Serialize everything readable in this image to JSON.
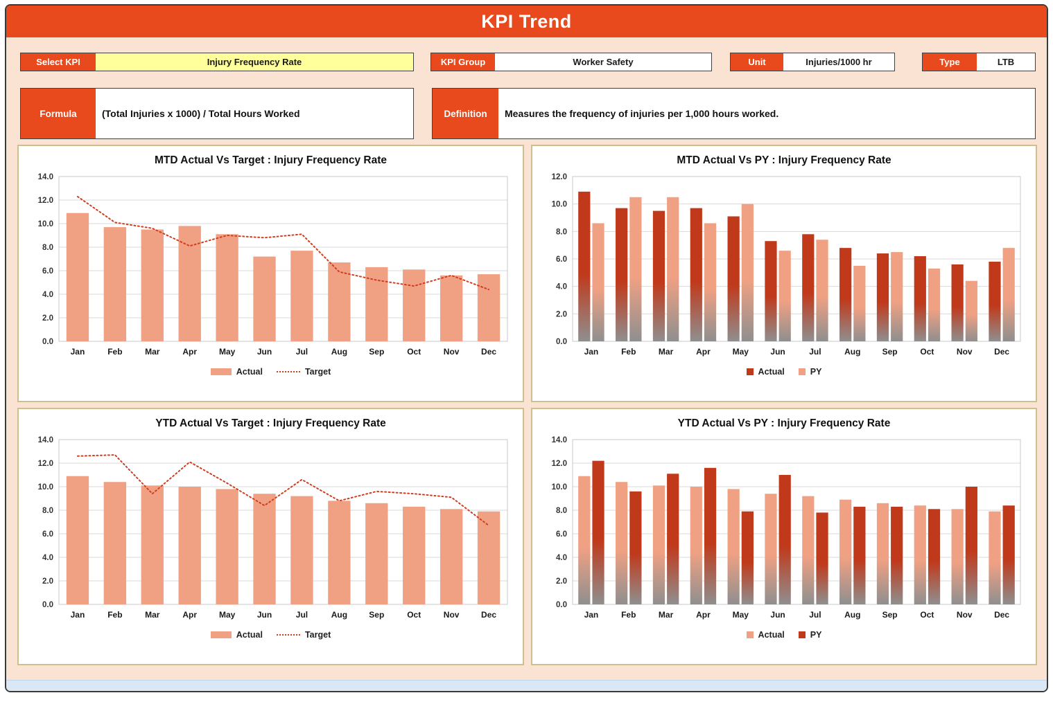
{
  "header": {
    "title": "KPI Trend"
  },
  "controls": {
    "select_kpi_label": "Select KPI",
    "select_kpi_value": "Injury Frequency Rate",
    "kpi_group_label": "KPI Group",
    "kpi_group_value": "Worker Safety",
    "unit_label": "Unit",
    "unit_value": "Injuries/1000 hr",
    "type_label": "Type",
    "type_value": "LTB",
    "formula_label": "Formula",
    "formula_value": "(Total Injuries x 1000) / Total Hours Worked",
    "definition_label": "Definition",
    "definition_value": "Measures the frequency of injuries per 1,000 hours worked."
  },
  "colors": {
    "accent": "#E8491D",
    "bar_salmon": "#F1A183",
    "bar_dark_red": "#C0391B",
    "target_line": "#CF3D1E",
    "gradient_bottom_gray": "#8F8F8F",
    "highlight_yellow": "#FFFF9C",
    "page_background": "#FBE3D4",
    "panel_border": "#CCC08E",
    "bottom_strip_blue": "#DAE8F5"
  },
  "chart_data": [
    {
      "id": "mtd-actual-vs-target",
      "type": "bar+line",
      "title": "MTD Actual Vs Target : Injury Frequency Rate",
      "categories": [
        "Jan",
        "Feb",
        "Mar",
        "Apr",
        "May",
        "Jun",
        "Jul",
        "Aug",
        "Sep",
        "Oct",
        "Nov",
        "Dec"
      ],
      "ylim": [
        0,
        14
      ],
      "ystep": 2,
      "grid": true,
      "legend_position": "bottom",
      "legend_swatch": "rect",
      "series": [
        {
          "name": "Actual",
          "type": "bar",
          "color": "#F1A183",
          "gradient": false,
          "values": [
            10.9,
            9.7,
            9.5,
            9.8,
            9.1,
            7.2,
            7.7,
            6.7,
            6.3,
            6.1,
            5.6,
            5.7
          ]
        },
        {
          "name": "Target",
          "type": "line",
          "color": "#CF3D1E",
          "line_style": "dotted",
          "values": [
            12.3,
            10.1,
            9.6,
            8.1,
            9.0,
            8.8,
            9.1,
            5.9,
            5.2,
            4.7,
            5.6,
            4.4
          ]
        }
      ]
    },
    {
      "id": "mtd-actual-vs-py",
      "type": "bar",
      "title": "MTD Actual Vs PY : Injury Frequency Rate",
      "categories": [
        "Jan",
        "Feb",
        "Mar",
        "Apr",
        "May",
        "Jun",
        "Jul",
        "Aug",
        "Sep",
        "Oct",
        "Nov",
        "Dec"
      ],
      "ylim": [
        0,
        12
      ],
      "ystep": 2,
      "grid": true,
      "legend_position": "bottom",
      "legend_swatch": "square",
      "series": [
        {
          "name": "Actual",
          "type": "bar",
          "color": "#C0391B",
          "gradient": true,
          "values": [
            10.9,
            9.7,
            9.5,
            9.7,
            9.1,
            7.3,
            7.8,
            6.8,
            6.4,
            6.2,
            5.6,
            5.8
          ]
        },
        {
          "name": "PY",
          "type": "bar",
          "color": "#F1A183",
          "gradient": true,
          "values": [
            8.6,
            10.5,
            10.5,
            8.6,
            10.0,
            6.6,
            7.4,
            5.5,
            6.5,
            5.3,
            4.4,
            6.8
          ]
        }
      ]
    },
    {
      "id": "ytd-actual-vs-target",
      "type": "bar+line",
      "title": "YTD Actual Vs Target : Injury Frequency Rate",
      "categories": [
        "Jan",
        "Feb",
        "Mar",
        "Apr",
        "May",
        "Jun",
        "Jul",
        "Aug",
        "Sep",
        "Oct",
        "Nov",
        "Dec"
      ],
      "ylim": [
        0,
        14
      ],
      "ystep": 2,
      "grid": true,
      "legend_position": "bottom",
      "legend_swatch": "rect",
      "series": [
        {
          "name": "Actual",
          "type": "bar",
          "color": "#F1A183",
          "gradient": false,
          "values": [
            10.9,
            10.4,
            10.1,
            10.0,
            9.8,
            9.4,
            9.2,
            8.8,
            8.6,
            8.3,
            8.1,
            7.9
          ]
        },
        {
          "name": "Target",
          "type": "line",
          "color": "#CF3D1E",
          "line_style": "dotted",
          "values": [
            12.6,
            12.7,
            9.4,
            12.1,
            10.3,
            8.4,
            10.6,
            8.8,
            9.6,
            9.4,
            9.1,
            6.7
          ]
        }
      ]
    },
    {
      "id": "ytd-actual-vs-py",
      "type": "bar",
      "title": "YTD Actual Vs PY : Injury Frequency Rate",
      "categories": [
        "Jan",
        "Feb",
        "Mar",
        "Apr",
        "May",
        "Jun",
        "Jul",
        "Aug",
        "Sep",
        "Oct",
        "Nov",
        "Dec"
      ],
      "ylim": [
        0,
        14
      ],
      "ystep": 2,
      "grid": true,
      "legend_position": "bottom",
      "legend_swatch": "square",
      "series": [
        {
          "name": "Actual",
          "type": "bar",
          "color": "#F1A183",
          "gradient": true,
          "values": [
            10.9,
            10.4,
            10.1,
            10.0,
            9.8,
            9.4,
            9.2,
            8.9,
            8.6,
            8.4,
            8.1,
            7.9
          ]
        },
        {
          "name": "PY",
          "type": "bar",
          "color": "#C0391B",
          "gradient": true,
          "values": [
            12.2,
            9.6,
            11.1,
            11.6,
            7.9,
            11.0,
            7.8,
            8.3,
            8.3,
            8.1,
            10.0,
            8.4
          ]
        }
      ]
    }
  ]
}
